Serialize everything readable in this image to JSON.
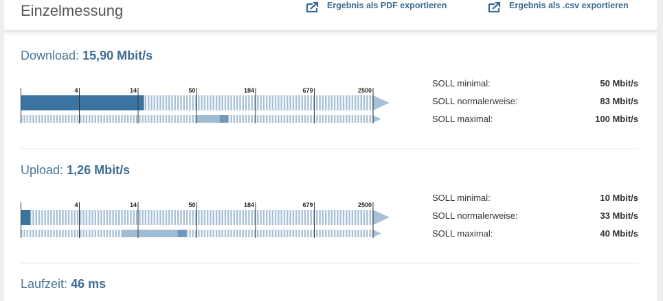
{
  "header": {
    "title": "Einzelmessung",
    "links": [
      "Ergebnis als PDF exportieren",
      "Ergebnis als .csv exportieren"
    ]
  },
  "sections": [
    {
      "label": "Download:",
      "value_label": "15,90 Mbit/s",
      "value": 15.9,
      "scale_lim": [
        1,
        2500
      ],
      "ticks": [
        4,
        14,
        50,
        184,
        679,
        2500
      ],
      "soll": [
        {
          "label": "SOLL minimal:",
          "value_label": "50 Mbit/s",
          "value": 50
        },
        {
          "label": "SOLL normalerweise:",
          "value_label": "83 Mbit/s",
          "value": 83
        },
        {
          "label": "SOLL maximal:",
          "value_label": "100 Mbit/s",
          "value": 100
        }
      ]
    },
    {
      "label": "Upload:",
      "value_label": "1,26 Mbit/s",
      "value": 1.26,
      "scale_lim": [
        1,
        2500
      ],
      "ticks": [
        4,
        14,
        50,
        184,
        679,
        2500
      ],
      "soll": [
        {
          "label": "SOLL minimal:",
          "value_label": "10 Mbit/s",
          "value": 10
        },
        {
          "label": "SOLL normalerweise:",
          "value_label": "33 Mbit/s",
          "value": 33
        },
        {
          "label": "SOLL maximal:",
          "value_label": "40 Mbit/s",
          "value": 40
        }
      ]
    }
  ],
  "runtime": {
    "label": "Laufzeit:",
    "value_label": "46 ms"
  }
}
